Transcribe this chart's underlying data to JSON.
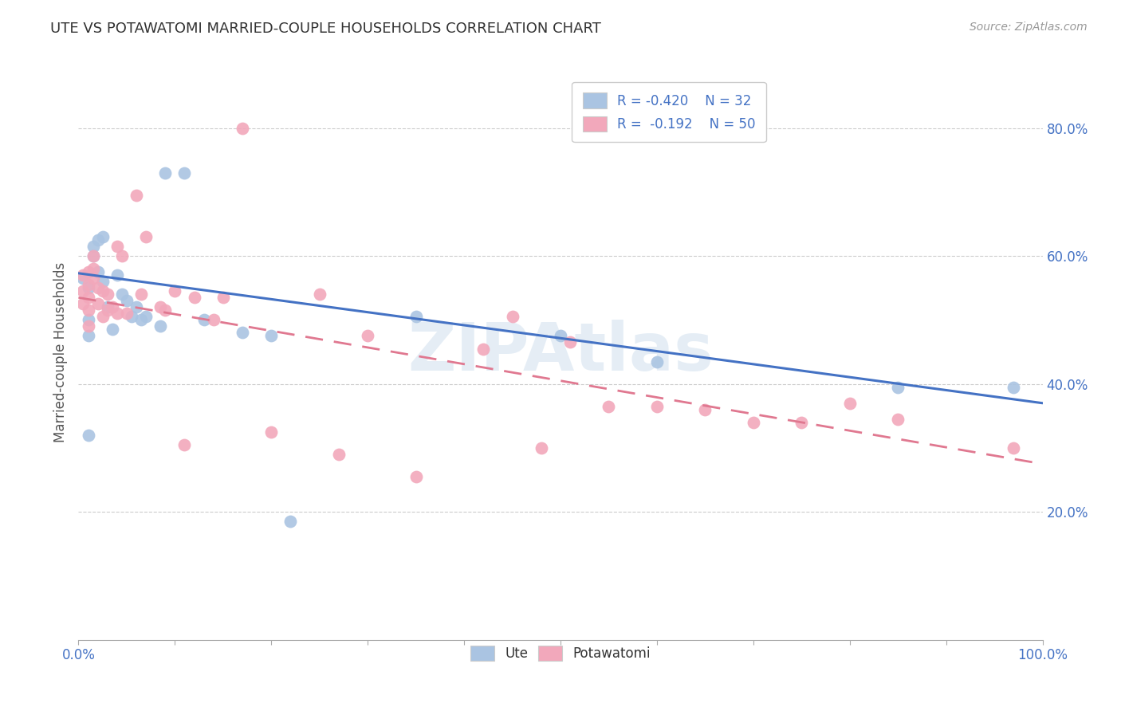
{
  "title": "UTE VS POTAWATOMI MARRIED-COUPLE HOUSEHOLDS CORRELATION CHART",
  "source": "Source: ZipAtlas.com",
  "ylabel": "Married-couple Households",
  "legend_r_ute": "R = -0.420",
  "legend_n_ute": "N = 32",
  "legend_r_pot": "R =  -0.192",
  "legend_n_pot": "N = 50",
  "ute_color": "#aac4e2",
  "pot_color": "#f2a8bb",
  "ute_line_color": "#4472c4",
  "pot_line_color": "#e07890",
  "background_color": "#ffffff",
  "grid_color": "#cccccc",
  "xlim": [
    0.0,
    1.0
  ],
  "ylim": [
    0.0,
    0.9
  ],
  "yticks": [
    0.2,
    0.4,
    0.6,
    0.8
  ],
  "xtick_positions": [
    0.0,
    0.1,
    0.2,
    0.3,
    0.4,
    0.5,
    0.6,
    0.7,
    0.8,
    0.9,
    1.0
  ],
  "ute_line_x0": 0.0,
  "ute_line_y0": 0.573,
  "ute_line_x1": 1.0,
  "ute_line_y1": 0.37,
  "pot_line_x0": 0.0,
  "pot_line_y0": 0.535,
  "pot_line_x1": 1.0,
  "pot_line_y1": 0.275,
  "ute_x": [
    0.005,
    0.01,
    0.01,
    0.01,
    0.01,
    0.015,
    0.015,
    0.02,
    0.02,
    0.025,
    0.025,
    0.03,
    0.035,
    0.04,
    0.045,
    0.05,
    0.055,
    0.06,
    0.065,
    0.07,
    0.085,
    0.09,
    0.11,
    0.13,
    0.17,
    0.2,
    0.22,
    0.35,
    0.5,
    0.6,
    0.85,
    0.97
  ],
  "ute_y": [
    0.565,
    0.55,
    0.5,
    0.475,
    0.32,
    0.615,
    0.6,
    0.625,
    0.575,
    0.63,
    0.56,
    0.52,
    0.485,
    0.57,
    0.54,
    0.53,
    0.505,
    0.52,
    0.5,
    0.505,
    0.49,
    0.73,
    0.73,
    0.5,
    0.48,
    0.475,
    0.185,
    0.505,
    0.475,
    0.435,
    0.395,
    0.395
  ],
  "pot_x": [
    0.005,
    0.005,
    0.005,
    0.01,
    0.01,
    0.01,
    0.01,
    0.01,
    0.015,
    0.015,
    0.015,
    0.02,
    0.02,
    0.025,
    0.025,
    0.03,
    0.03,
    0.035,
    0.04,
    0.04,
    0.045,
    0.05,
    0.06,
    0.065,
    0.07,
    0.085,
    0.09,
    0.1,
    0.11,
    0.12,
    0.14,
    0.15,
    0.17,
    0.2,
    0.25,
    0.27,
    0.3,
    0.35,
    0.42,
    0.45,
    0.48,
    0.51,
    0.55,
    0.6,
    0.65,
    0.7,
    0.75,
    0.8,
    0.85,
    0.97
  ],
  "pot_y": [
    0.57,
    0.545,
    0.525,
    0.575,
    0.555,
    0.535,
    0.515,
    0.49,
    0.6,
    0.58,
    0.565,
    0.55,
    0.525,
    0.545,
    0.505,
    0.54,
    0.515,
    0.52,
    0.615,
    0.51,
    0.6,
    0.51,
    0.695,
    0.54,
    0.63,
    0.52,
    0.515,
    0.545,
    0.305,
    0.535,
    0.5,
    0.535,
    0.8,
    0.325,
    0.54,
    0.29,
    0.475,
    0.255,
    0.455,
    0.505,
    0.3,
    0.465,
    0.365,
    0.365,
    0.36,
    0.34,
    0.34,
    0.37,
    0.345,
    0.3
  ],
  "watermark": "ZIPAtlas",
  "watermark_color": "#ccdded"
}
